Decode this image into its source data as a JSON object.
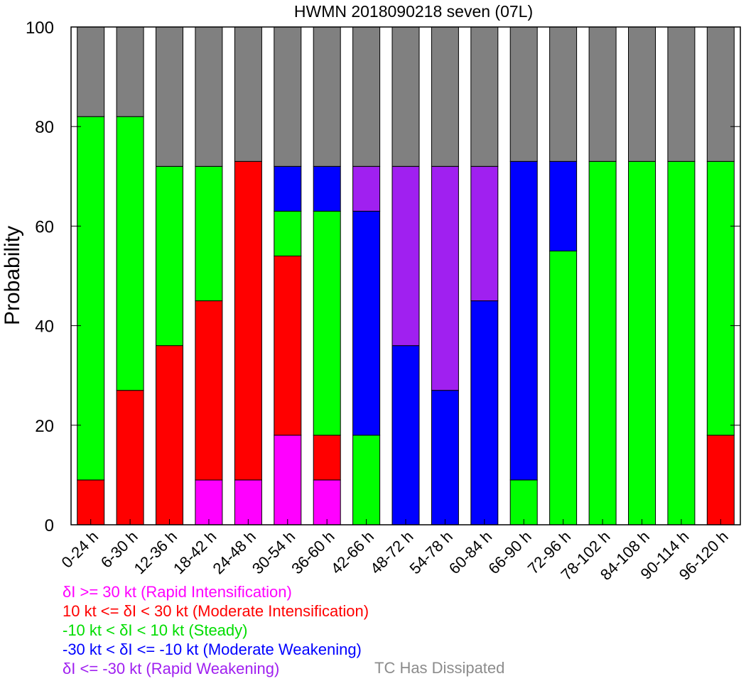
{
  "chart_data": {
    "type": "bar",
    "stacked": true,
    "title": "HWMN 2018090218 seven (07L)",
    "xlabel": "",
    "ylabel": "Probability",
    "ylim": [
      0,
      100
    ],
    "yticks": [
      0,
      20,
      40,
      60,
      80,
      100
    ],
    "grid": false,
    "legend_position": "bottom",
    "categories": [
      "0-24 h",
      "6-30 h",
      "12-36 h",
      "18-42 h",
      "24-48 h",
      "30-54 h",
      "36-60 h",
      "42-66 h",
      "48-72 h",
      "54-78 h",
      "60-84 h",
      "66-90 h",
      "72-96 h",
      "78-102 h",
      "84-108 h",
      "90-114 h",
      "96-120 h"
    ],
    "series": [
      {
        "name": "δI >= 30 kt (Rapid Intensification)",
        "color": "#ff00ff",
        "values": [
          0,
          0,
          0,
          9,
          9,
          18,
          9,
          0,
          0,
          0,
          0,
          0,
          0,
          0,
          0,
          0,
          0
        ]
      },
      {
        "name": "10 kt <= δI < 30 kt (Moderate Intensification)",
        "color": "#ff0000",
        "values": [
          9,
          27,
          36,
          36,
          64,
          36,
          9,
          0,
          0,
          0,
          0,
          0,
          0,
          0,
          0,
          0,
          18
        ]
      },
      {
        "name": "-10 kt < δI < 10 kt (Steady)",
        "color": "#00ff00",
        "values": [
          73,
          55,
          36,
          27,
          0,
          9,
          45,
          18,
          0,
          0,
          0,
          9,
          55,
          73,
          73,
          73,
          55
        ]
      },
      {
        "name": "-30 kt < δI <= -10 kt (Moderate Weakening)",
        "color": "#0000ff",
        "values": [
          0,
          0,
          0,
          0,
          0,
          9,
          9,
          45,
          36,
          27,
          45,
          64,
          18,
          0,
          0,
          0,
          0
        ]
      },
      {
        "name": "δI <= -30 kt (Rapid Weakening)",
        "color": "#a020f0",
        "values": [
          0,
          0,
          0,
          0,
          0,
          0,
          0,
          9,
          36,
          45,
          27,
          0,
          0,
          0,
          0,
          0,
          0
        ]
      },
      {
        "name": "TC Has Dissipated",
        "color": "#808080",
        "values": [
          18,
          18,
          28,
          28,
          27,
          28,
          28,
          28,
          28,
          28,
          28,
          27,
          27,
          27,
          27,
          27,
          27
        ]
      }
    ]
  }
}
